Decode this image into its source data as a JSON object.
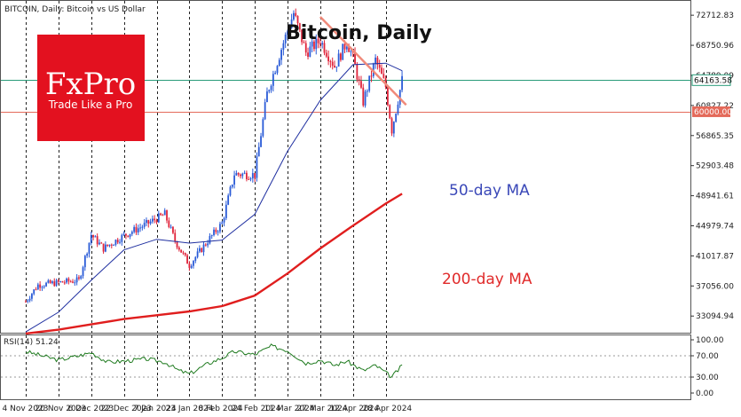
{
  "header": {
    "symbol_info": "BITCOIN, Daily:  Bitcoin vs US Dollar",
    "title": "Bitcoin, Daily"
  },
  "logo": {
    "brand": "FxPro",
    "tagline": "Trade Like a Pro",
    "color": "#e3111f"
  },
  "labels": {
    "ma50": "50-day MA",
    "ma200": "200-day MA"
  },
  "price_tags": {
    "current": "64163.58",
    "level": "60000.00"
  },
  "rsi": {
    "label": "RSI(14) 51.24"
  },
  "chart_data": [
    {
      "type": "line",
      "subtype": "candlestick",
      "title": "Bitcoin, Daily",
      "x_ticks": [
        "4 Nov 2023",
        "20 Nov 2023",
        "6 Dec 2023",
        "22 Dec 2023",
        "7 Jan 2024",
        "23 Jan 2024",
        "8 Feb 2024",
        "24 Feb 2024",
        "11 Mar 2024",
        "27 Mar 2024",
        "12 Apr 2024",
        "28 Apr 2024"
      ],
      "y_ticks": [
        33094.94,
        37056.0,
        41017.87,
        44979.74,
        48941.61,
        52903.48,
        56865.35,
        60827.22,
        64789.09,
        68750.96,
        72712.83
      ],
      "ylim": [
        30900,
        74600
      ],
      "grid": "vertical dashed at each date tick",
      "price_points": [
        [
          "4 Nov 2023",
          35000
        ],
        [
          "10 Nov 2023",
          37200
        ],
        [
          "20 Nov 2023",
          37500
        ],
        [
          "30 Nov 2023",
          37800
        ],
        [
          "6 Dec 2023",
          43800
        ],
        [
          "12 Dec 2023",
          42000
        ],
        [
          "22 Dec 2023",
          43700
        ],
        [
          "2 Jan 2024",
          45200
        ],
        [
          "11 Jan 2024",
          46500
        ],
        [
          "16 Jan 2024",
          43000
        ],
        [
          "23 Jan 2024",
          39800
        ],
        [
          "1 Feb 2024",
          43000
        ],
        [
          "8 Feb 2024",
          45300
        ],
        [
          "14 Feb 2024",
          51800
        ],
        [
          "24 Feb 2024",
          51700
        ],
        [
          "1 Mar 2024",
          62400
        ],
        [
          "8 Mar 2024",
          68300
        ],
        [
          "14 Mar 2024",
          73000
        ],
        [
          "20 Mar 2024",
          67800
        ],
        [
          "27 Mar 2024",
          69400
        ],
        [
          "3 Apr 2024",
          66000
        ],
        [
          "9 Apr 2024",
          69200
        ],
        [
          "12 Apr 2024",
          67200
        ],
        [
          "17 Apr 2024",
          61300
        ],
        [
          "23 Apr 2024",
          66800
        ],
        [
          "28 Apr 2024",
          63300
        ],
        [
          "1 May 2024",
          57600
        ],
        [
          "6 May 2024",
          64163.58
        ]
      ],
      "series": [
        {
          "name": "50-day MA",
          "color": "#1f2fa0",
          "points": [
            [
              "4 Nov 2023",
              31000
            ],
            [
              "20 Nov 2023",
              33600
            ],
            [
              "6 Dec 2023",
              37800
            ],
            [
              "22 Dec 2023",
              41800
            ],
            [
              "7 Jan 2024",
              43200
            ],
            [
              "23 Jan 2024",
              42700
            ],
            [
              "8 Feb 2024",
              43100
            ],
            [
              "24 Feb 2024",
              46500
            ],
            [
              "11 Mar 2024",
              54800
            ],
            [
              "27 Mar 2024",
              61500
            ],
            [
              "12 Apr 2024",
              66200
            ],
            [
              "28 Apr 2024",
              66400
            ],
            [
              "6 May 2024",
              65400
            ]
          ]
        },
        {
          "name": "200-day MA",
          "color": "#e01e1e",
          "points": [
            [
              "4 Nov 2023",
              30800
            ],
            [
              "20 Nov 2023",
              31300
            ],
            [
              "6 Dec 2023",
              32000
            ],
            [
              "22 Dec 2023",
              32700
            ],
            [
              "7 Jan 2024",
              33200
            ],
            [
              "23 Jan 2024",
              33700
            ],
            [
              "8 Feb 2024",
              34400
            ],
            [
              "24 Feb 2024",
              35800
            ],
            [
              "11 Mar 2024",
              38700
            ],
            [
              "27 Mar 2024",
              42000
            ],
            [
              "12 Apr 2024",
              45000
            ],
            [
              "28 Apr 2024",
              47900
            ],
            [
              "6 May 2024",
              49200
            ]
          ]
        }
      ],
      "trendline": {
        "color": "#f08a7a",
        "points": [
          [
            "27 Mar 2024",
            72500
          ],
          [
            "8 May 2024",
            60900
          ]
        ]
      },
      "horizontal_lines": [
        {
          "value": 64163.58,
          "color": "#2a9c7a"
        },
        {
          "value": 60000.0,
          "color": "#e46a5a"
        }
      ]
    },
    {
      "type": "line",
      "title": "RSI(14) 51.24",
      "y_ticks": [
        0.0,
        30.0,
        70.0,
        100.0
      ],
      "ylim": [
        0,
        100
      ],
      "levels": [
        30,
        70
      ],
      "series": [
        {
          "name": "RSI(14)",
          "color": "#1e7a1e",
          "points": [
            [
              "4 Nov 2023",
              78
            ],
            [
              "10 Nov 2023",
              72
            ],
            [
              "20 Nov 2023",
              62
            ],
            [
              "30 Nov 2023",
              70
            ],
            [
              "6 Dec 2023",
              76
            ],
            [
              "14 Dec 2023",
              58
            ],
            [
              "22 Dec 2023",
              60
            ],
            [
              "2 Jan 2024",
              64
            ],
            [
              "11 Jan 2024",
              58
            ],
            [
              "18 Jan 2024",
              42
            ],
            [
              "23 Jan 2024",
              36
            ],
            [
              "1 Feb 2024",
              55
            ],
            [
              "8 Feb 2024",
              66
            ],
            [
              "14 Feb 2024",
              78
            ],
            [
              "24 Feb 2024",
              72
            ],
            [
              "3 Mar 2024",
              88
            ],
            [
              "11 Mar 2024",
              80
            ],
            [
              "20 Mar 2024",
              56
            ],
            [
              "27 Mar 2024",
              62
            ],
            [
              "3 Apr 2024",
              52
            ],
            [
              "9 Apr 2024",
              60
            ],
            [
              "17 Apr 2024",
              42
            ],
            [
              "23 Apr 2024",
              52
            ],
            [
              "1 May 2024",
              30
            ],
            [
              "6 May 2024",
              51.24
            ]
          ]
        }
      ]
    }
  ]
}
